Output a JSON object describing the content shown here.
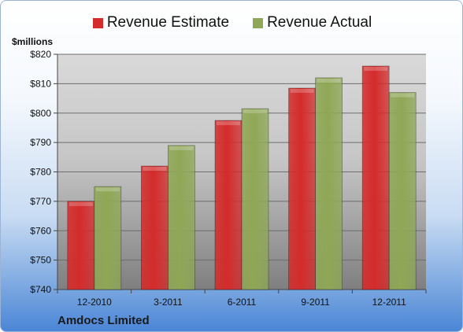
{
  "chart_data": {
    "type": "bar",
    "title": "Amdocs Limited",
    "ylabel": "$millions",
    "categories": [
      "12-2010",
      "3-2011",
      "6-2011",
      "9-2011",
      "12-2011"
    ],
    "series": [
      {
        "name": "Revenue Estimate",
        "values": [
          770,
          782,
          797.5,
          808.5,
          816
        ],
        "color": "#d42b2b"
      },
      {
        "name": "Revenue Actual",
        "values": [
          775,
          789,
          801.5,
          812,
          807
        ],
        "color": "#8fa756"
      }
    ],
    "ylim": [
      740,
      820
    ],
    "yticks": [
      740,
      750,
      760,
      770,
      780,
      790,
      800,
      810,
      820
    ],
    "ytick_labels": [
      "$740",
      "$750",
      "$760",
      "$770",
      "$780",
      "$790",
      "$800",
      "$810",
      "$820"
    ],
    "grid": true,
    "legend": "top"
  }
}
